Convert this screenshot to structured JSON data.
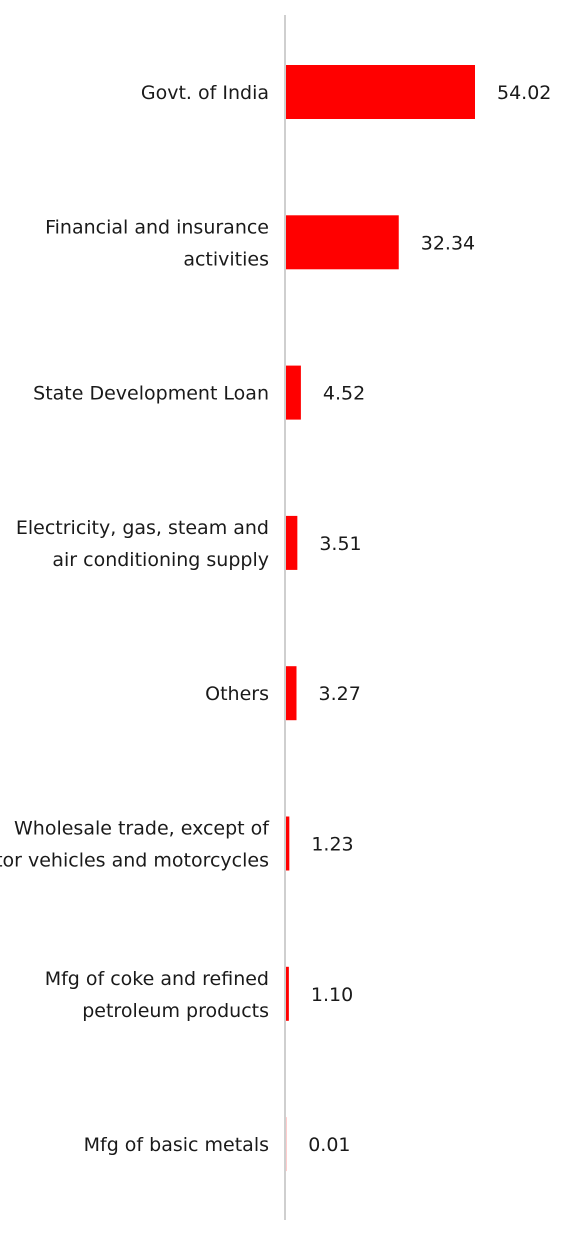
{
  "chart_data": {
    "type": "bar",
    "orientation": "horizontal",
    "title": "",
    "xlabel": "",
    "ylabel": "",
    "grid": false,
    "legend": "none",
    "bar_color": "#ff0000",
    "xlim": [
      0,
      60
    ],
    "categories": [
      "Govt. of India",
      "Financial and insurance activities",
      "State Development Loan",
      "Electricity, gas, steam and air conditioning supply",
      "Others",
      "Wholesale trade, except of motor vehicles and motorcycles",
      "Mfg of coke and refined petroleum products",
      "Mfg of basic metals"
    ],
    "values": [
      54.02,
      32.34,
      4.52,
      3.51,
      3.27,
      1.23,
      1.1,
      0.01
    ],
    "value_labels": [
      "54.02",
      "32.34",
      "4.52",
      "3.51",
      "3.27",
      "1.23",
      "1.10",
      "0.01"
    ]
  }
}
